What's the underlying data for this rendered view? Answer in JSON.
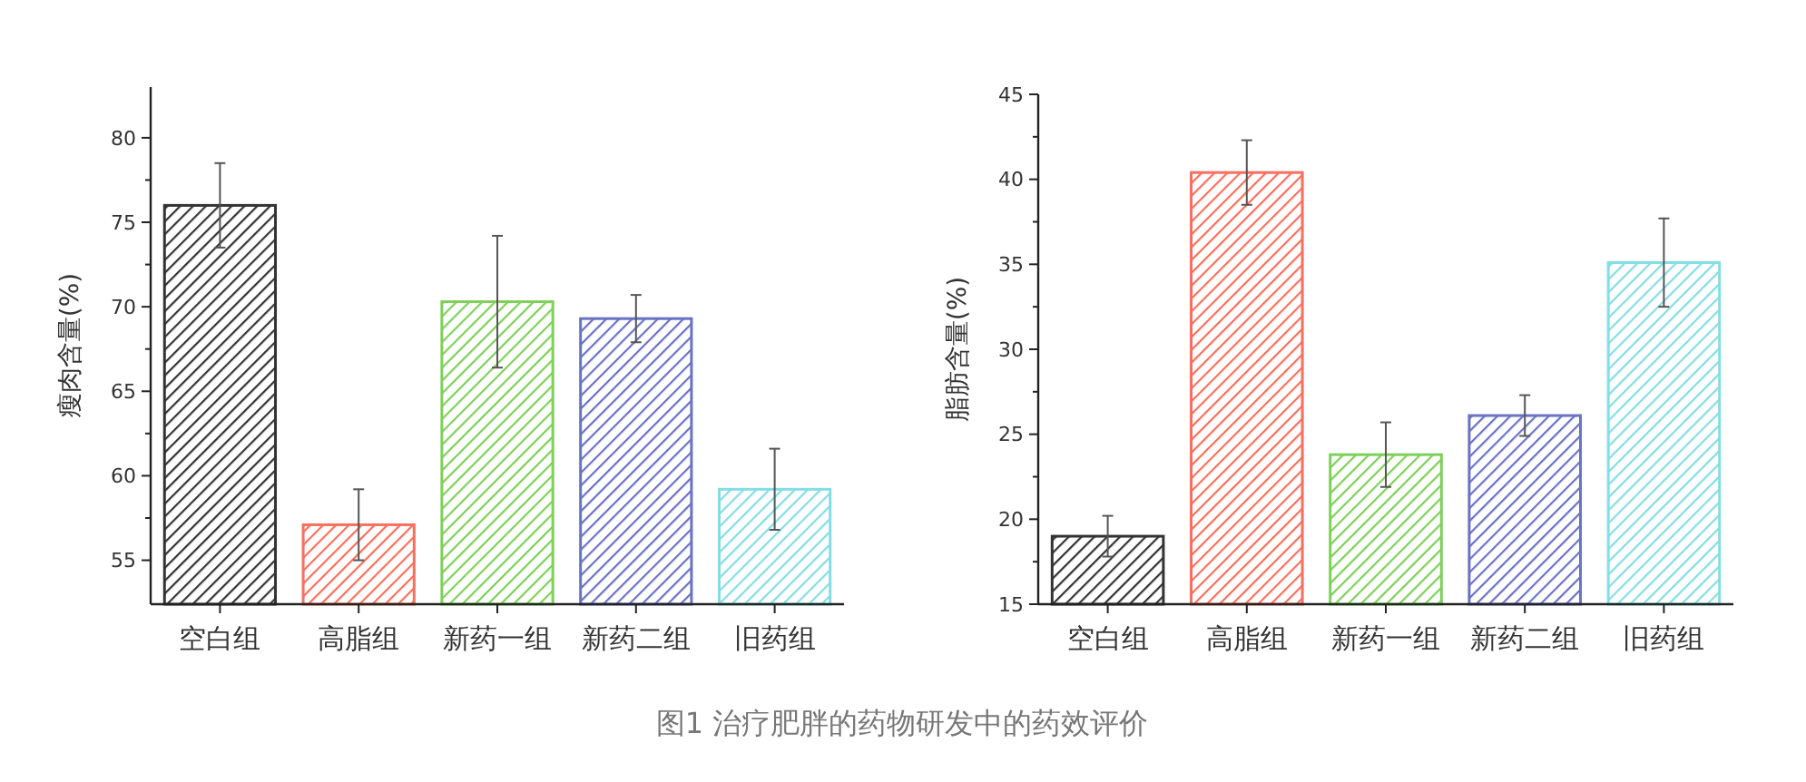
{
  "chart_data": [
    {
      "type": "bar",
      "ylabel": "瘦肉含量(%)",
      "categories": [
        "空白组",
        "高脂组",
        "新药一组",
        "新药二组",
        "旧药组"
      ],
      "values": [
        76.0,
        57.1,
        70.3,
        69.3,
        59.2
      ],
      "errors": [
        2.5,
        2.1,
        3.9,
        1.4,
        2.4
      ],
      "colors": [
        "#333333",
        "#f7705e",
        "#7fcf5a",
        "#6a72c4",
        "#84dde4"
      ],
      "ylim": [
        52.4,
        83
      ],
      "yticks": [
        55,
        60,
        65,
        70,
        75,
        80
      ],
      "annotations": [
        "图1 治疗肥胖的药物研发中的药效评价"
      ]
    },
    {
      "type": "bar",
      "ylabel": "脂肪含量(%)",
      "categories": [
        "空白组",
        "高脂组",
        "新药一组",
        "新药二组",
        "旧药组"
      ],
      "values": [
        19.0,
        40.4,
        23.8,
        26.1,
        35.1
      ],
      "errors": [
        1.2,
        1.9,
        1.9,
        1.2,
        2.6
      ],
      "colors": [
        "#333333",
        "#f7705e",
        "#7fcf5a",
        "#6a72c4",
        "#84dde4"
      ],
      "ylim": [
        15,
        45
      ],
      "yticks": [
        15,
        20,
        25,
        30,
        35,
        40,
        45
      ]
    }
  ]
}
